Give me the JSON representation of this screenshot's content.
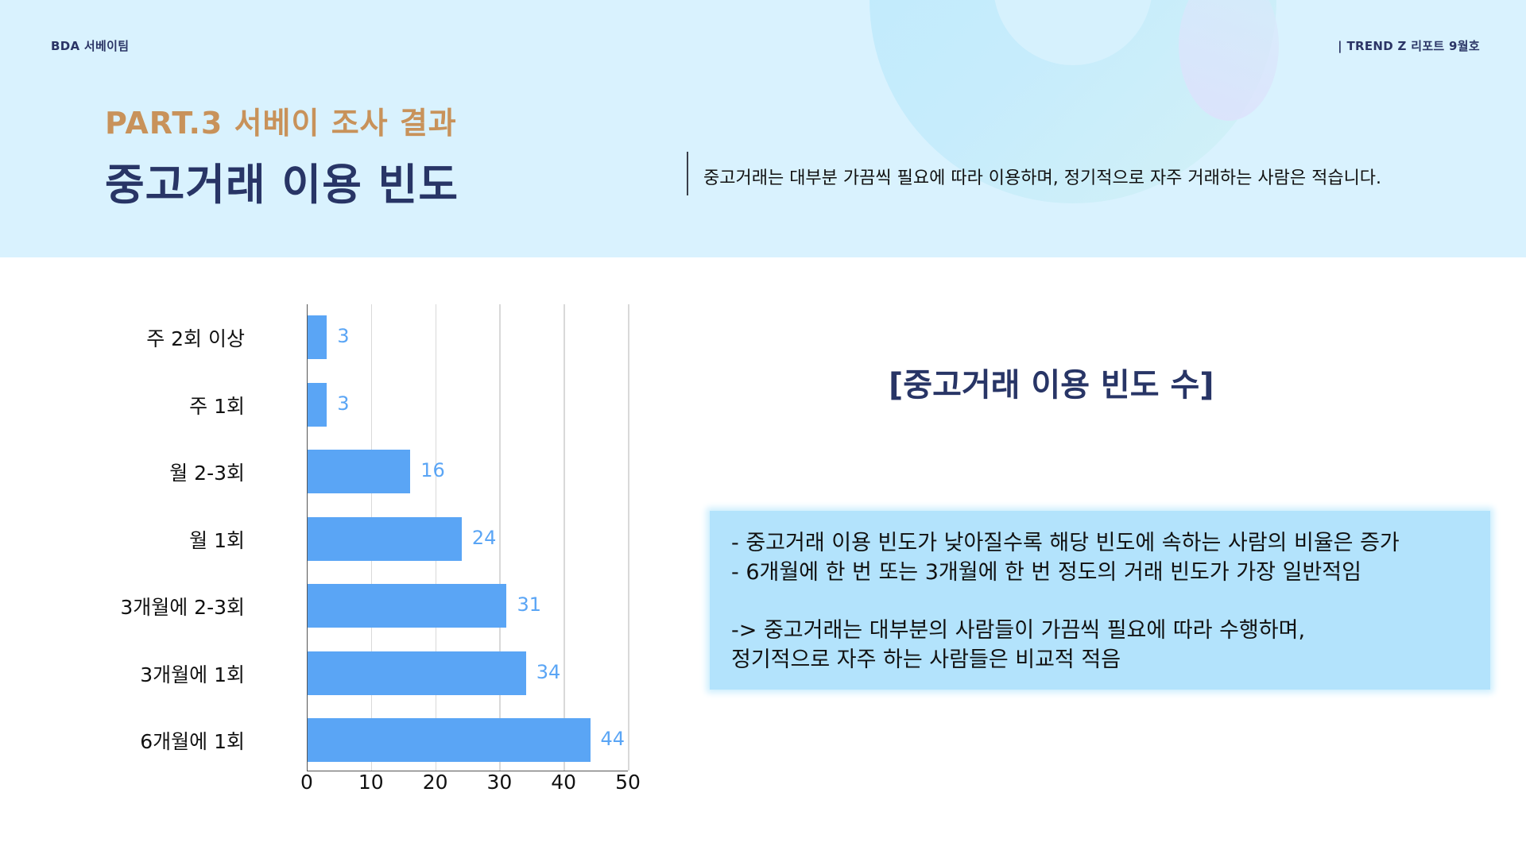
{
  "header": {
    "brand": "BDA 서베이팀",
    "report": "| TREND Z 리포트 9월호",
    "part": "PART.3 서베이 조사 결과",
    "title": "중고거래 이용 빈도",
    "subtitle": "중고거래는 대부분 가끔씩 필요에 따라 이용하며, 정기적으로 자주 거래하는 사람은 적습니다."
  },
  "colors": {
    "header_bg": "#d9f2fe",
    "part_color": "#c8925a",
    "title_color": "#283566",
    "bar_color": "#5aa5f5",
    "note_bg": "#b3e3fc"
  },
  "chart_title": "[중고거래 이용 빈도 수]",
  "chart_data": {
    "type": "bar",
    "orientation": "horizontal",
    "title": "[중고거래 이용 빈도 수]",
    "xlabel": "",
    "ylabel": "",
    "categories": [
      "주 2회 이상",
      "주 1회",
      "월 2-3회",
      "월 1회",
      "3개월에 2-3회",
      "3개월에 1회",
      "6개월에 1회"
    ],
    "values": [
      3,
      3,
      16,
      24,
      31,
      34,
      44
    ],
    "xlim": [
      0,
      50
    ],
    "xticks": [
      "0",
      "10",
      "20",
      "30",
      "40",
      "50"
    ],
    "grid": "vertical",
    "data_labels": true,
    "legend": null
  },
  "note": {
    "lines": [
      "- 중고거래 이용 빈도가 낮아질수록 해당 빈도에 속하는 사람의 비율은 증가",
      "- 6개월에 한 번 또는 3개월에 한 번 정도의 거래 빈도가 가장 일반적임",
      "-> 중고거래는 대부분의 사람들이 가끔씩 필요에 따라 수행하며,",
      "정기적으로 자주 하는 사람들은 비교적 적음"
    ]
  }
}
